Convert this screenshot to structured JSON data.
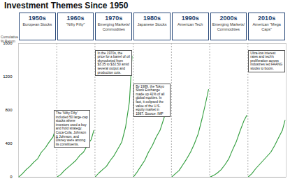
{
  "chart_data": {
    "type": "line",
    "title": "Investment Themes Since 1950",
    "y_label": "Cumulative % Return",
    "xlim": [
      1950,
      2020
    ],
    "ylim": [
      0,
      1600
    ],
    "yticks": [
      0,
      400,
      800,
      1200,
      1600
    ],
    "grid": false,
    "legend": false,
    "tick_labels": "y",
    "series": [
      {
        "name": "1950s",
        "theme": "European Stocks",
        "color": "#2e9c3a",
        "x": [
          1950,
          1951,
          1952,
          1953,
          1954,
          1955,
          1956,
          1957,
          1958,
          1959,
          1959.7
        ],
        "values": [
          0,
          40,
          90,
          130,
          180,
          220,
          300,
          350,
          420,
          480,
          580
        ]
      },
      {
        "name": "1960s",
        "theme": "\"Nifty Fifty\"",
        "color": "#2e9c3a",
        "x": [
          1960,
          1961,
          1962,
          1963,
          1964,
          1965,
          1966,
          1967,
          1968,
          1969,
          1969.7
        ],
        "values": [
          0,
          30,
          80,
          120,
          160,
          200,
          260,
          300,
          380,
          450,
          560
        ]
      },
      {
        "name": "1970s",
        "theme": "Emerging Markets/ Commodities",
        "color": "#2e9c3a",
        "x": [
          1970,
          1971,
          1972,
          1973,
          1974,
          1975,
          1976,
          1977,
          1978,
          1979,
          1979.7
        ],
        "values": [
          0,
          50,
          90,
          130,
          200,
          260,
          340,
          420,
          600,
          900,
          1450
        ]
      },
      {
        "name": "1980s",
        "theme": "Japanese Stocks",
        "color": "#2e9c3a",
        "x": [
          1980,
          1981,
          1982,
          1983,
          1984,
          1985,
          1986,
          1987,
          1988,
          1989,
          1989.7
        ],
        "values": [
          0,
          60,
          130,
          200,
          300,
          380,
          480,
          560,
          700,
          860,
          880
        ]
      },
      {
        "name": "1990s",
        "theme": "American Tech",
        "color": "#2e9c3a",
        "x": [
          1990,
          1991,
          1992,
          1993,
          1994,
          1995,
          1996,
          1997,
          1998,
          1999,
          1999.7
        ],
        "values": [
          0,
          40,
          80,
          150,
          220,
          300,
          400,
          520,
          700,
          900,
          1050
        ]
      },
      {
        "name": "2000s",
        "theme": "Emerging Markets/ Commodities",
        "color": "#2e9c3a",
        "x": [
          2000,
          2001,
          2002,
          2003,
          2004,
          2005,
          2006,
          2007,
          2008,
          2009,
          2009.7
        ],
        "values": [
          0,
          20,
          50,
          90,
          150,
          220,
          330,
          430,
          560,
          680,
          740
        ]
      },
      {
        "name": "2010s",
        "theme": "American \"Mega Caps\"",
        "color": "#2e9c3a",
        "x": [
          2010,
          2011,
          2012,
          2013,
          2014,
          2015,
          2016,
          2017,
          2018,
          2019,
          2019.7
        ],
        "values": [
          0,
          40,
          100,
          150,
          200,
          250,
          300,
          380,
          470,
          560,
          680
        ]
      }
    ],
    "annotations": [
      {
        "series": "1960s",
        "text": "The 'Nifty Fifty' included 50 large-cap stocks where investors used a buy and hold strategy. Coca-Cola, Johnson & Johnson, and Disney were among its constituents."
      },
      {
        "series": "1970s",
        "text": "In the 1970s, the price for a barrel of oil skyrocketed from $3.35 to $32.50 amid several output and production cuts."
      },
      {
        "series": "1980s",
        "text": "By 1989, the Tokyo Stock Exchange made up 41% of all global equities. In fact, it eclipsed the value of the U.S. equity market in 1987. Source: IMF"
      },
      {
        "series": "2010s",
        "text": "Ultra-low interest rates and tech's proliferation across industries led FAANG stocks to boom."
      }
    ]
  }
}
